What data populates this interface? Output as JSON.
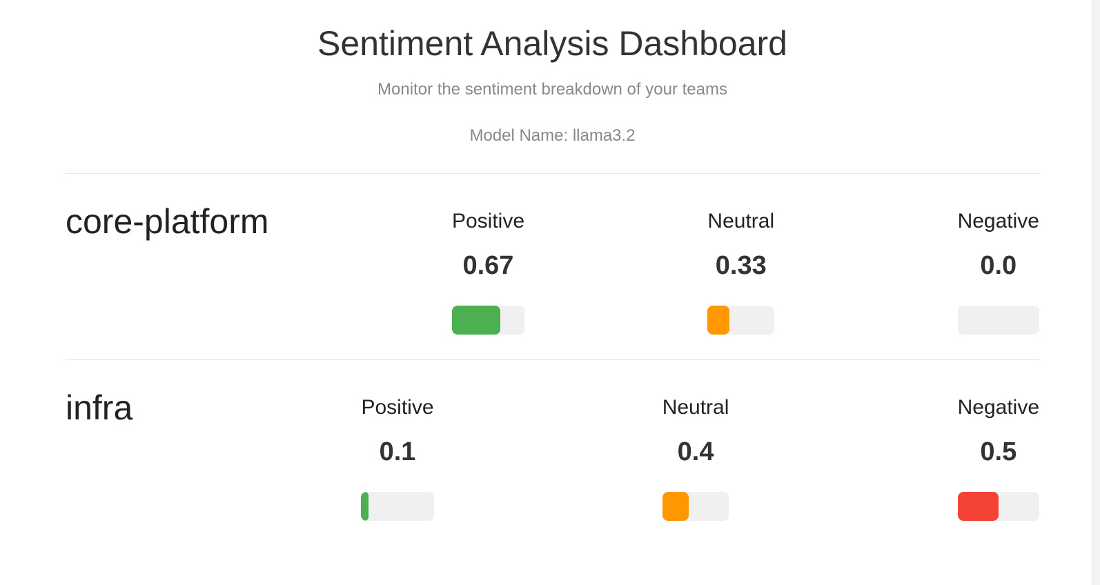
{
  "header": {
    "title": "Sentiment Analysis Dashboard",
    "subtitle": "Monitor the sentiment breakdown of your teams",
    "model": "Model Name: llama3.2"
  },
  "colors": {
    "positive": "#4caf50",
    "neutral": "#ff9800",
    "negative": "#f44336"
  },
  "teams": [
    {
      "name": "core-platform",
      "metrics": [
        {
          "label": "Positive",
          "value": "0.67",
          "fraction": 0.67
        },
        {
          "label": "Neutral",
          "value": "0.33",
          "fraction": 0.33
        },
        {
          "label": "Negative",
          "value": "0.0",
          "fraction": 0.0
        }
      ]
    },
    {
      "name": "infra",
      "metrics": [
        {
          "label": "Positive",
          "value": "0.1",
          "fraction": 0.1
        },
        {
          "label": "Neutral",
          "value": "0.4",
          "fraction": 0.4
        },
        {
          "label": "Negative",
          "value": "0.5",
          "fraction": 0.5
        }
      ]
    }
  ]
}
